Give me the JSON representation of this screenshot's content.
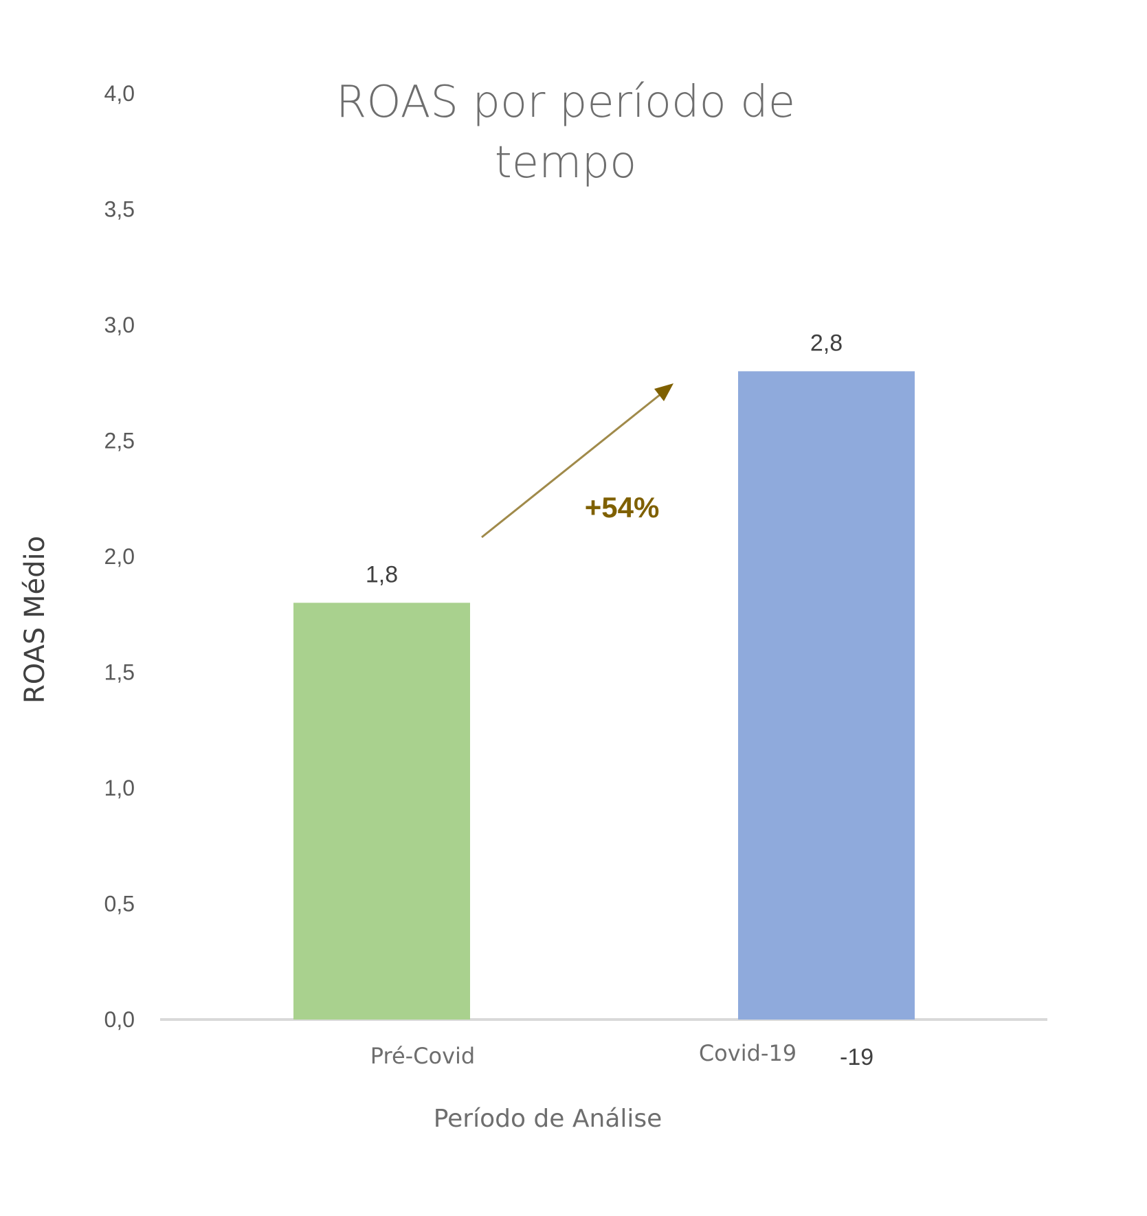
{
  "chart_data": {
    "type": "bar",
    "title_lines": [
      "ROAS por período de",
      "tempo"
    ],
    "xlabel": "Período de Análise",
    "ylabel": "ROAS Médio",
    "categories": [
      "Pré-Covid",
      "Covid-19"
    ],
    "values": [
      1.8,
      2.8
    ],
    "data_labels": [
      "1,8",
      "2,8"
    ],
    "bar_colors": [
      "#a9d18e",
      "#8faadc"
    ],
    "ylim": [
      0,
      4.0
    ],
    "yticks": [
      "0,0",
      "0,5",
      "1,0",
      "1,5",
      "2,0",
      "2,5",
      "3,0",
      "3,5",
      "4,0"
    ],
    "grid": false,
    "annotation": {
      "text": "+54%",
      "color": "#7f6000",
      "arrow": "from Pré-Covid to Covid-19"
    },
    "artifact_text": "-19"
  }
}
